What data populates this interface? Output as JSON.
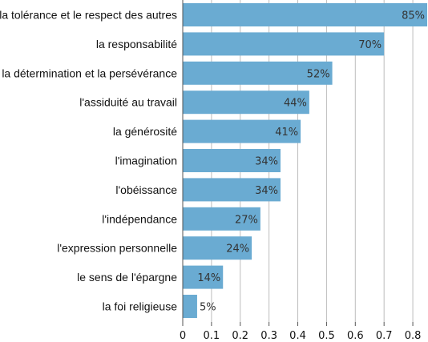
{
  "chart_data": {
    "type": "bar",
    "orientation": "horizontal",
    "categories": [
      "la tolérance et le respect des autres",
      "la responsabilité",
      "la détermination et la persévérance",
      "l'assiduité au travail",
      "la générosité",
      "l'imagination",
      "l'obéissance",
      "l'indépendance",
      "l'expression personnelle",
      "le sens de l'épargne",
      "la foi religieuse"
    ],
    "values": [
      0.85,
      0.7,
      0.52,
      0.44,
      0.41,
      0.34,
      0.34,
      0.27,
      0.24,
      0.14,
      0.05
    ],
    "data_labels": [
      "85%",
      "70%",
      "52%",
      "44%",
      "41%",
      "34%",
      "34%",
      "27%",
      "24%",
      "14%",
      "5%"
    ],
    "xlim": [
      0,
      0.85
    ],
    "xticks": [
      "0",
      "0.1",
      "0.2",
      "0.3",
      "0.4",
      "0.5",
      "0.6",
      "0.7",
      "0.8"
    ],
    "grid": true,
    "bar_color": "#6aabd2",
    "title": "",
    "xlabel": "",
    "ylabel": ""
  }
}
